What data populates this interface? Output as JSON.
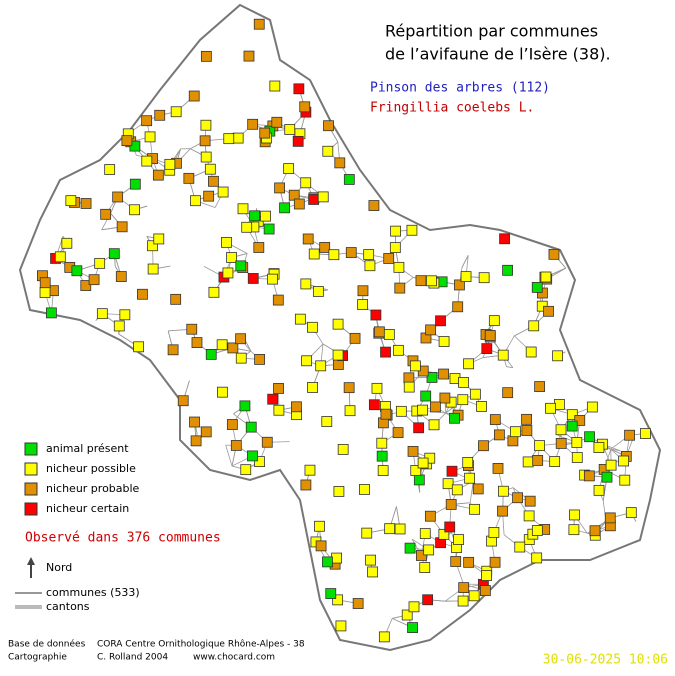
{
  "title": [
    "Répartition par communes",
    "de l’avifaune de l’Isère (38)."
  ],
  "species": {
    "common_name": "Pinson des arbres  (112)",
    "latin_name": "Fringillia coelebs L."
  },
  "legend": [
    {
      "label": "animal présent",
      "color": "#00e000"
    },
    {
      "label": "nicheur possible",
      "color": "#ffff00"
    },
    {
      "label": "nicheur probable",
      "color": "#e09000"
    },
    {
      "label": "nicheur certain",
      "color": "#ff0000"
    }
  ],
  "observed": "Observé dans 376 communes",
  "north": "Nord",
  "lines_legend": [
    "communes (533)",
    "cantons"
  ],
  "footer": {
    "database_label": "Base de données",
    "database": "CORA Centre Ornithologique Rhône-Alpes - 38",
    "mapping_label": "Cartographie",
    "author": "C. Rolland 2004",
    "website": "www.chocard.com"
  },
  "date": "30-06-2025 10:06"
}
